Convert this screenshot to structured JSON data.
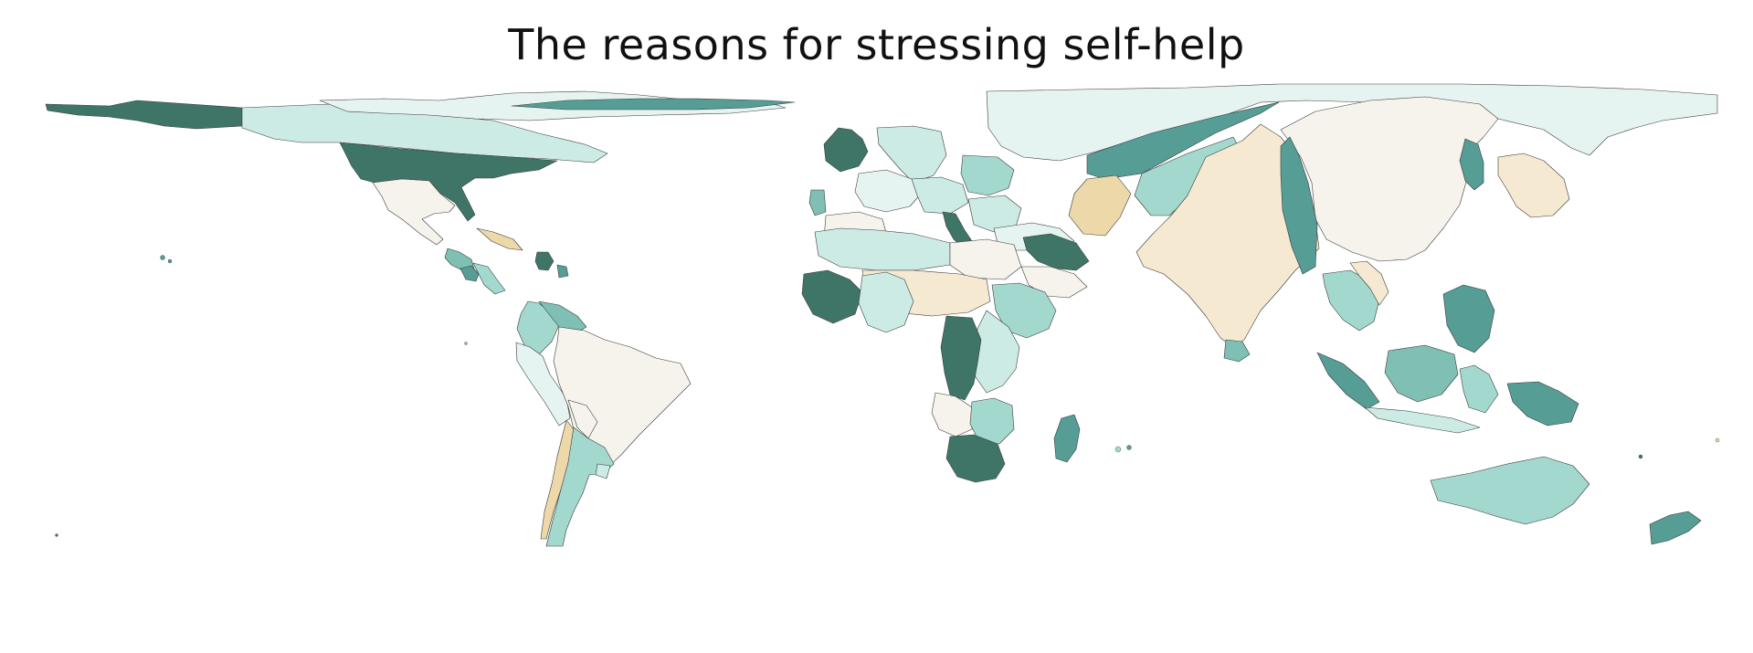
{
  "title": "The reasons for stressing self-help",
  "palette": {
    "very_dark_teal": "#3f7567",
    "dark_teal": "#559d95",
    "medium_teal": "#7fbfb4",
    "light_teal": "#a3d8cf",
    "pale_teal": "#cdebe5",
    "very_pale_teal": "#e6f4f1",
    "off_white": "#f6f3ec",
    "pale_tan": "#f5ead1",
    "tan": "#ecd8a9",
    "border": "#3b3b3b"
  },
  "regions": [
    {
      "name": "alaska",
      "fill": "very_dark_teal"
    },
    {
      "name": "canada",
      "fill": "pale_teal"
    },
    {
      "name": "arctic-islands-na",
      "fill": "very_pale_teal"
    },
    {
      "name": "greenland-strip",
      "fill": "dark_teal"
    },
    {
      "name": "usa",
      "fill": "very_dark_teal"
    },
    {
      "name": "mexico",
      "fill": "off_white"
    },
    {
      "name": "cuba",
      "fill": "tan"
    },
    {
      "name": "central-america-a",
      "fill": "medium_teal"
    },
    {
      "name": "central-america-b",
      "fill": "dark_teal"
    },
    {
      "name": "central-america-c",
      "fill": "light_teal"
    },
    {
      "name": "hispaniola",
      "fill": "very_dark_teal"
    },
    {
      "name": "caribbean-islet",
      "fill": "dark_teal"
    },
    {
      "name": "colombia",
      "fill": "light_teal"
    },
    {
      "name": "venezuela",
      "fill": "medium_teal"
    },
    {
      "name": "ecuador-peru",
      "fill": "very_pale_teal"
    },
    {
      "name": "brazil",
      "fill": "off_white"
    },
    {
      "name": "bolivia",
      "fill": "off_white"
    },
    {
      "name": "chile",
      "fill": "tan"
    },
    {
      "name": "argentina",
      "fill": "light_teal"
    },
    {
      "name": "uruguay",
      "fill": "pale_teal"
    },
    {
      "name": "ireland-uk",
      "fill": "very_dark_teal"
    },
    {
      "name": "scandinavia",
      "fill": "pale_teal"
    },
    {
      "name": "europe-west",
      "fill": "very_pale_teal"
    },
    {
      "name": "germany",
      "fill": "pale_teal"
    },
    {
      "name": "central-europe",
      "fill": "light_teal"
    },
    {
      "name": "italy",
      "fill": "very_dark_teal"
    },
    {
      "name": "iberia",
      "fill": "off_white"
    },
    {
      "name": "portugal",
      "fill": "medium_teal"
    },
    {
      "name": "balkans",
      "fill": "pale_teal"
    },
    {
      "name": "turkey",
      "fill": "very_pale_teal"
    },
    {
      "name": "russia",
      "fill": "very_pale_teal"
    },
    {
      "name": "kazakhstan",
      "fill": "dark_teal"
    },
    {
      "name": "central-asia",
      "fill": "light_teal"
    },
    {
      "name": "pakistan",
      "fill": "tan"
    },
    {
      "name": "india",
      "fill": "pale_tan"
    },
    {
      "name": "china",
      "fill": "off_white"
    },
    {
      "name": "bangladesh-myanmar",
      "fill": "dark_teal"
    },
    {
      "name": "korea",
      "fill": "dark_teal"
    },
    {
      "name": "japan",
      "fill": "pale_tan"
    },
    {
      "name": "indochina",
      "fill": "light_teal"
    },
    {
      "name": "thailand",
      "fill": "pale_tan"
    },
    {
      "name": "philippines",
      "fill": "dark_teal"
    },
    {
      "name": "sri-lanka",
      "fill": "medium_teal"
    },
    {
      "name": "sumatra",
      "fill": "dark_teal"
    },
    {
      "name": "borneo",
      "fill": "medium_teal"
    },
    {
      "name": "sulawesi",
      "fill": "light_teal"
    },
    {
      "name": "java",
      "fill": "pale_teal"
    },
    {
      "name": "new-guinea",
      "fill": "dark_teal"
    },
    {
      "name": "australia",
      "fill": "light_teal"
    },
    {
      "name": "new-zealand",
      "fill": "dark_teal"
    },
    {
      "name": "north-africa",
      "fill": "pale_teal"
    },
    {
      "name": "libya-egypt",
      "fill": "off_white"
    },
    {
      "name": "middle-east",
      "fill": "very_dark_teal"
    },
    {
      "name": "arabia",
      "fill": "off_white"
    },
    {
      "name": "west-africa",
      "fill": "very_dark_teal"
    },
    {
      "name": "sahel",
      "fill": "pale_tan"
    },
    {
      "name": "nigeria-chad",
      "fill": "pale_teal"
    },
    {
      "name": "ethiopia",
      "fill": "light_teal"
    },
    {
      "name": "east-africa",
      "fill": "pale_teal"
    },
    {
      "name": "congo",
      "fill": "very_dark_teal"
    },
    {
      "name": "angola",
      "fill": "off_white"
    },
    {
      "name": "southern-africa",
      "fill": "light_teal"
    },
    {
      "name": "south-africa",
      "fill": "very_dark_teal"
    },
    {
      "name": "madagascar",
      "fill": "dark_teal"
    }
  ]
}
